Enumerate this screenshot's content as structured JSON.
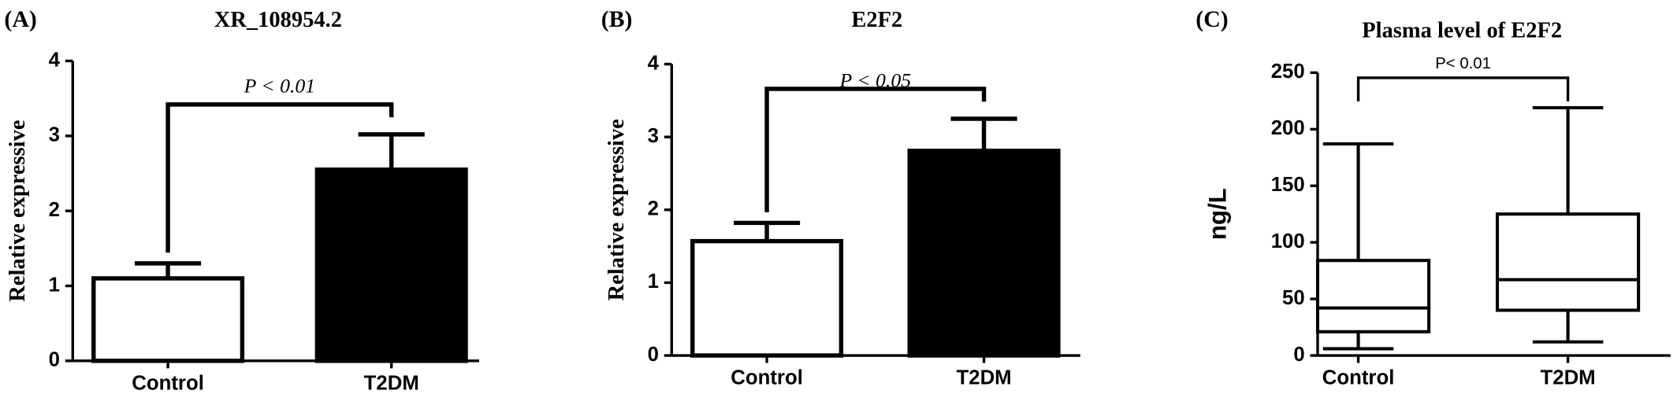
{
  "chart_data": [
    {
      "type": "bar",
      "panel": "(A)",
      "title": "XR_108954.2",
      "y_label": "Relative expressive",
      "categories": [
        "Control",
        "T2DM"
      ],
      "values": [
        1.1,
        2.55
      ],
      "errors": [
        0.2,
        0.47
      ],
      "colors": [
        "#ffffff",
        "#000000"
      ],
      "ylim": [
        0,
        4
      ],
      "yticks": [
        0,
        1,
        2,
        3,
        4
      ],
      "annotation": "P < 0.01"
    },
    {
      "type": "bar",
      "panel": "(B)",
      "title": "E2F2",
      "y_label": "Relative expressive",
      "categories": [
        "Control",
        "T2DM"
      ],
      "values": [
        1.57,
        2.81
      ],
      "errors": [
        0.25,
        0.44
      ],
      "colors": [
        "#ffffff",
        "#000000"
      ],
      "ylim": [
        0,
        4
      ],
      "yticks": [
        0,
        1,
        2,
        3,
        4
      ],
      "annotation": "P < 0.05"
    },
    {
      "type": "box",
      "panel": "(C)",
      "title": "Plasma level of E2F2",
      "y_label": "ng/L",
      "categories": [
        "Control",
        "T2DM"
      ],
      "boxes": [
        {
          "min": 6,
          "q1": 21,
          "median": 42,
          "q3": 84,
          "max": 187
        },
        {
          "min": 12,
          "q1": 40,
          "median": 67,
          "q3": 125,
          "max": 219
        }
      ],
      "ylim": [
        0,
        250
      ],
      "yticks": [
        0,
        50,
        100,
        150,
        200,
        250
      ],
      "annotation": "P< 0.01"
    }
  ]
}
